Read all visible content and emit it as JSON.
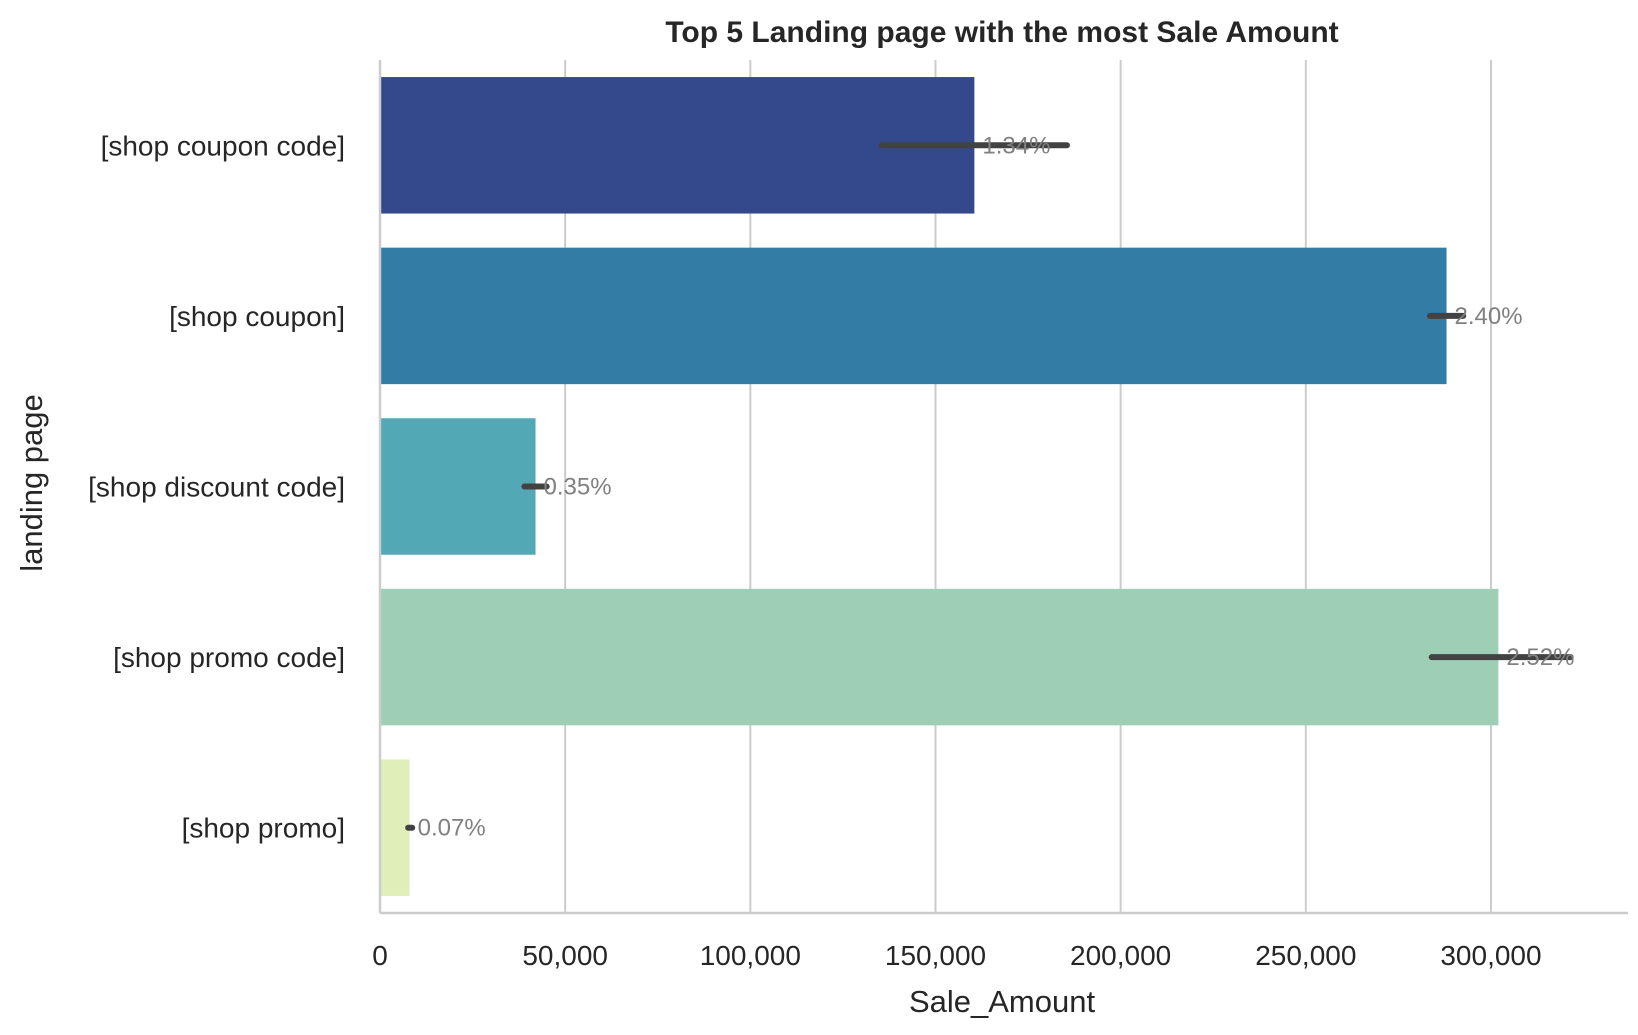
{
  "chart_data": {
    "type": "bar",
    "orientation": "horizontal",
    "title": "Top 5 Landing page with the most Sale Amount",
    "xlabel": "Sale_Amount",
    "ylabel": "landing page",
    "xlim": [
      0,
      337000
    ],
    "xticks": [
      0,
      50000,
      100000,
      150000,
      200000,
      250000,
      300000
    ],
    "xtick_labels": [
      "0",
      "50,000",
      "100,000",
      "150,000",
      "200,000",
      "250,000",
      "300,000"
    ],
    "grid": "vertical",
    "categories": [
      "[shop coupon code]",
      "[shop coupon]",
      "[shop discount code]",
      "[shop promo code]",
      "[shop promo]"
    ],
    "values": [
      160500,
      288000,
      42000,
      302000,
      8000
    ],
    "error_low": [
      135500,
      283500,
      39000,
      284000,
      7600
    ],
    "error_high": [
      185500,
      292500,
      45000,
      321500,
      8700
    ],
    "data_labels": [
      "1.34%",
      "2.40%",
      "0.35%",
      "2.52%",
      "0.07%"
    ],
    "colors": [
      "#34498b",
      "#327ca5",
      "#52a8b4",
      "#9ecfb6",
      "#e0eeb9"
    ],
    "error_color": "#424242",
    "label_color": "#808080"
  }
}
